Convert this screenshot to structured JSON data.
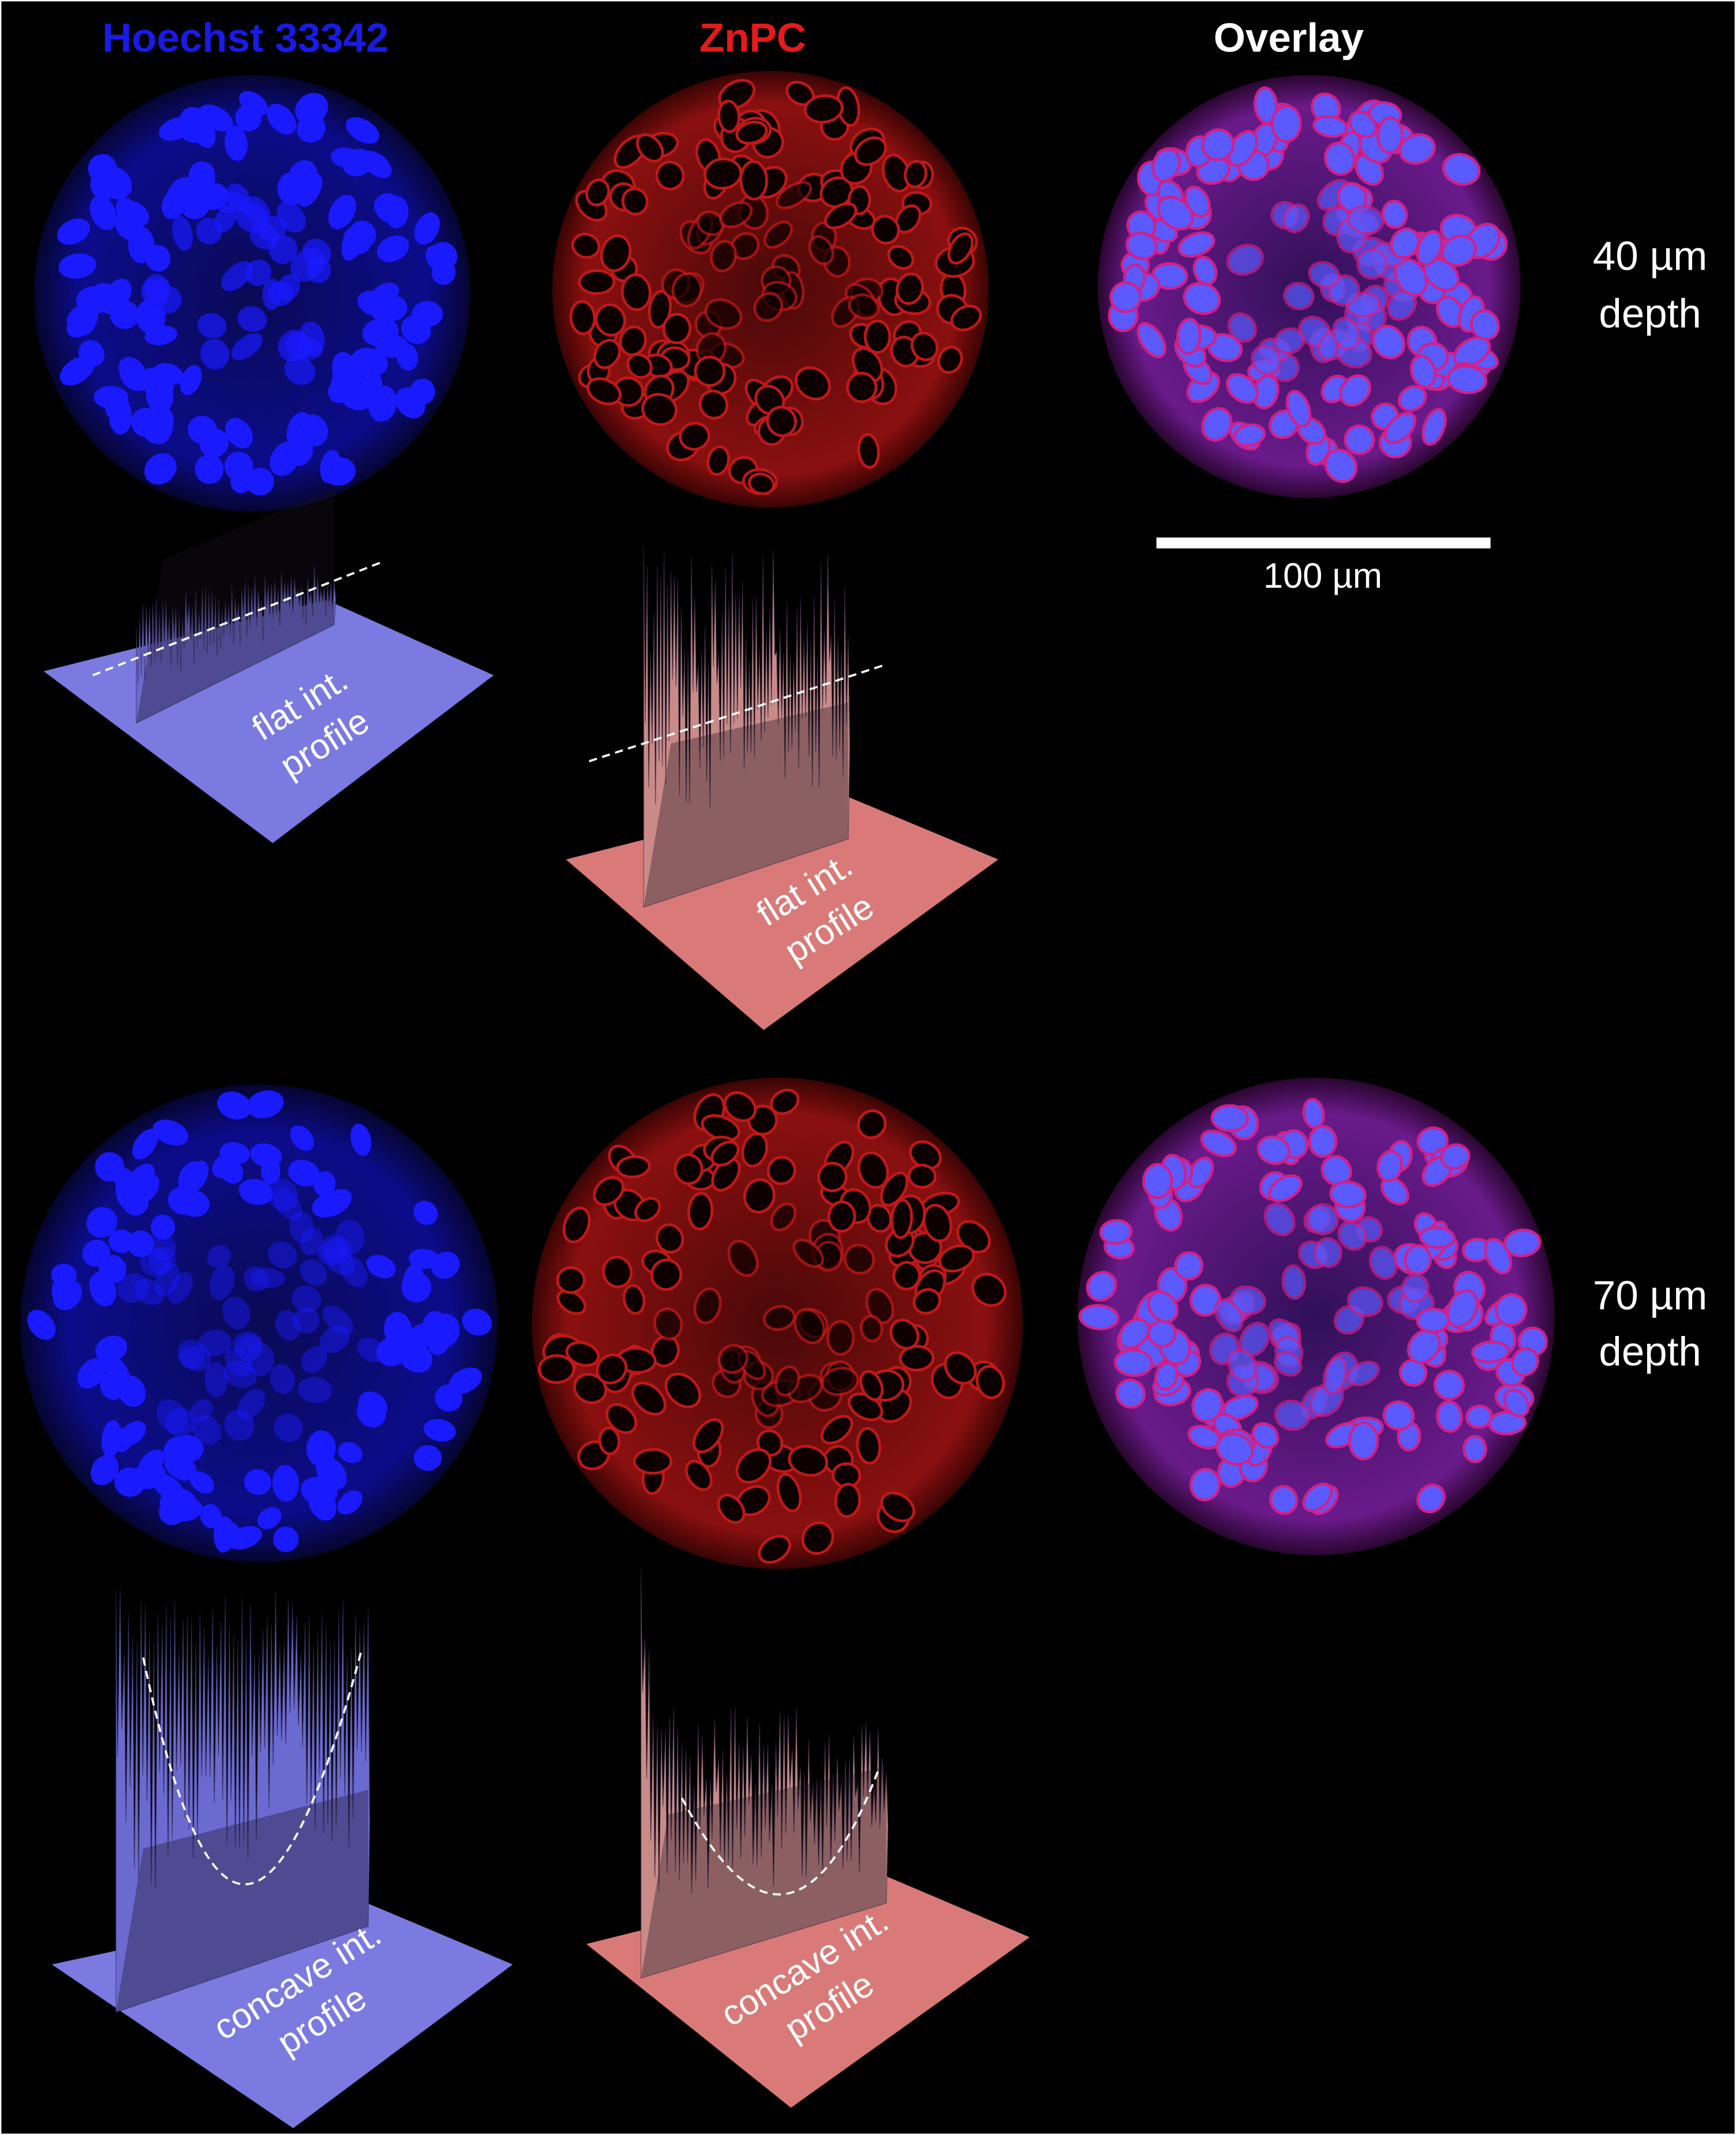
{
  "header": {
    "columns": [
      "Hoechst 33342",
      "ZnPC",
      "Overlay"
    ]
  },
  "rows": [
    {
      "depth": [
        "40 µm",
        "depth"
      ],
      "profiles": [
        [
          "flat int.",
          "profile"
        ],
        [
          "flat int.",
          "profile"
        ]
      ]
    },
    {
      "depth": [
        "70 µm",
        "depth"
      ],
      "profiles": [
        [
          "concave int.",
          "profile"
        ],
        [
          "concave int.",
          "profile"
        ]
      ]
    }
  ],
  "scale_bar": {
    "label": "100 µm"
  }
}
